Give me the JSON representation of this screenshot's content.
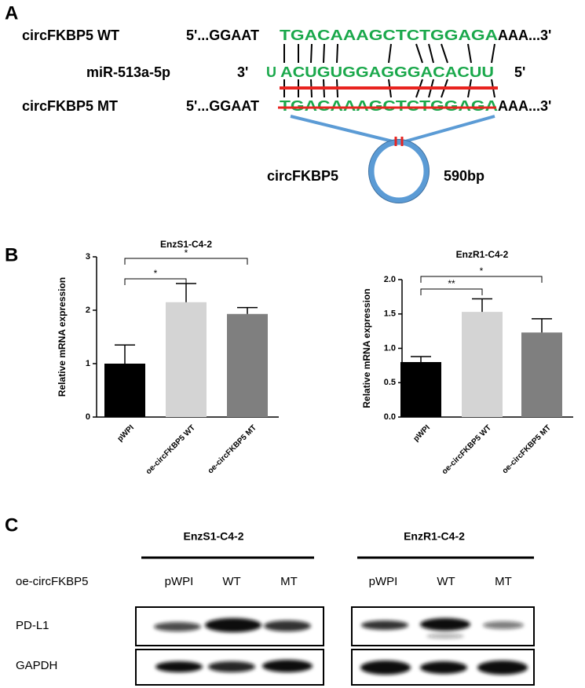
{
  "panel_a": {
    "label": "A",
    "wt": {
      "name": "circFKBP5 WT",
      "left": "5'...GGAAT",
      "seq": "TGACAAAGCTCTGGAGA",
      "right": "AAA...3'"
    },
    "mir": {
      "name": "miR-513a-5p",
      "left": "3'",
      "first": "U",
      "seq": "ACUGUGGAGGGACACUU",
      "right": "5'"
    },
    "mt": {
      "name": "circFKBP5 MT",
      "left": "5'...GGAAT",
      "seq": "TGACAAAGCTCTGGAGA",
      "right": "AAA...3'"
    },
    "circle_label": "circFKBP5",
    "size_label": "590bp"
  },
  "panel_b": {
    "label": "B"
  },
  "chart_data": [
    {
      "type": "bar",
      "title": "EnzS1-C4-2",
      "y_label": "Relative mRNA expression",
      "categories": [
        "pWPI",
        "oe-circFKBP5 WT",
        "oe-circFKBP5 MT"
      ],
      "values": [
        1.0,
        2.15,
        1.93
      ],
      "errors": [
        0.35,
        0.35,
        0.12
      ],
      "colors": [
        "#000000",
        "#d4d4d4",
        "#7f7f7f"
      ],
      "ylim": [
        0,
        3
      ],
      "yticks": [
        0,
        1,
        2,
        3
      ],
      "annotations": [
        {
          "text": "*",
          "between": [
            "pWPI",
            "oe-circFKBP5 WT"
          ]
        },
        {
          "text": "*",
          "between": [
            "pWPI",
            "oe-circFKBP5 MT"
          ]
        }
      ]
    },
    {
      "type": "bar",
      "title": "EnzR1-C4-2",
      "y_label": "Relative mRNA expression",
      "categories": [
        "pWPI",
        "oe-circFKBP5 WT",
        "oe-circFKBP5 MT"
      ],
      "values": [
        0.8,
        1.53,
        1.23
      ],
      "errors": [
        0.08,
        0.19,
        0.2
      ],
      "colors": [
        "#000000",
        "#d4d4d4",
        "#7f7f7f"
      ],
      "ylim": [
        0,
        2.0
      ],
      "yticks": [
        {
          "value": 0,
          "label": "0.0"
        },
        0.5,
        {
          "value": 1,
          "label": "1.0"
        },
        1.5,
        {
          "value": 2,
          "label": "2.0"
        }
      ],
      "annotations": [
        {
          "text": "**",
          "between": [
            "pWPI",
            "oe-circFKBP5 WT"
          ]
        },
        {
          "text": "*",
          "between": [
            "pWPI",
            "oe-circFKBP5 MT"
          ]
        }
      ]
    }
  ],
  "panel_c": {
    "label": "C",
    "row_header": "oe-circFKBP5",
    "groups": [
      {
        "name": "EnzS1-C4-2",
        "lanes": [
          "pWPI",
          "WT",
          "MT"
        ]
      },
      {
        "name": "EnzR1-C4-2",
        "lanes": [
          "pWPI",
          "WT",
          "MT"
        ]
      }
    ],
    "rows": [
      "PD-L1",
      "GAPDH"
    ]
  }
}
